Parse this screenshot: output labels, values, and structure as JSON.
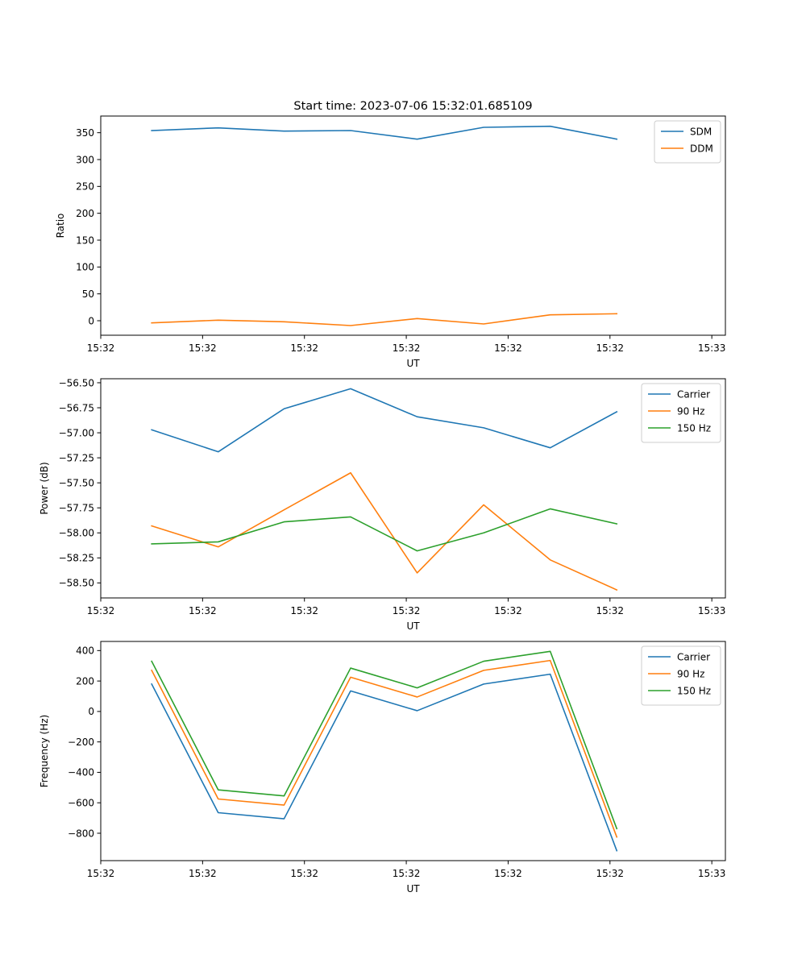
{
  "figure_title": "Start time: 2023-07-06 15:32:01.685109",
  "chart_data": [
    {
      "type": "line",
      "xlabel": "UT",
      "ylabel": "Ratio",
      "x_tick_labels": [
        "15:32",
        "15:32",
        "15:32",
        "15:32",
        "15:32",
        "15:32",
        "15:33"
      ],
      "xlim": [
        0,
        9.2
      ],
      "x_ticks": [
        0,
        1.5,
        3,
        4.5,
        6,
        7.5,
        9
      ],
      "x": [
        0.75,
        1.73,
        2.7,
        3.68,
        4.66,
        5.64,
        6.62,
        7.6
      ],
      "ylim": [
        -27,
        381
      ],
      "y_ticks": [
        0,
        50,
        100,
        150,
        200,
        250,
        300,
        350
      ],
      "legend_position": "top-right",
      "series": [
        {
          "name": "SDM",
          "color": "#1f77b4",
          "values": [
            354,
            359,
            353,
            354,
            338,
            360,
            362,
            338
          ]
        },
        {
          "name": "DDM",
          "color": "#ff7f0e",
          "values": [
            -4,
            1,
            -2,
            -9,
            4,
            -6,
            11,
            13
          ]
        }
      ]
    },
    {
      "type": "line",
      "xlabel": "UT",
      "ylabel": "Power (dB)",
      "x_tick_labels": [
        "15:32",
        "15:32",
        "15:32",
        "15:32",
        "15:32",
        "15:32",
        "15:33"
      ],
      "xlim": [
        0,
        9.2
      ],
      "x_ticks": [
        0,
        1.5,
        3,
        4.5,
        6,
        7.5,
        9
      ],
      "x": [
        0.75,
        1.73,
        2.7,
        3.68,
        4.66,
        5.64,
        6.62,
        7.6
      ],
      "ylim": [
        -58.65,
        -56.46
      ],
      "y_ticks": [
        -58.5,
        -58.25,
        -58.0,
        -57.75,
        -57.5,
        -57.25,
        -57.0,
        -56.75,
        -56.5
      ],
      "y_tick_labels": [
        "−58.50",
        "−58.25",
        "−58.00",
        "−57.75",
        "−57.50",
        "−57.25",
        "−57.00",
        "−56.75",
        "−56.50"
      ],
      "legend_position": "top-right",
      "series": [
        {
          "name": "Carrier",
          "color": "#1f77b4",
          "values": [
            -56.97,
            -57.19,
            -56.76,
            -56.56,
            -56.84,
            -56.95,
            -57.15,
            -56.79
          ]
        },
        {
          "name": "90 Hz",
          "color": "#ff7f0e",
          "values": [
            -57.93,
            -58.14,
            -57.77,
            -57.4,
            -58.4,
            -57.72,
            -58.27,
            -58.57
          ]
        },
        {
          "name": "150 Hz",
          "color": "#2ca02c",
          "values": [
            -58.11,
            -58.09,
            -57.89,
            -57.84,
            -58.18,
            -58.0,
            -57.76,
            -57.91
          ]
        }
      ]
    },
    {
      "type": "line",
      "xlabel": "UT",
      "ylabel": "Frequency (Hz)",
      "x_tick_labels": [
        "15:32",
        "15:32",
        "15:32",
        "15:32",
        "15:32",
        "15:32",
        "15:33"
      ],
      "xlim": [
        0,
        9.2
      ],
      "x_ticks": [
        0,
        1.5,
        3,
        4.5,
        6,
        7.5,
        9
      ],
      "x": [
        0.75,
        1.73,
        2.7,
        3.68,
        4.66,
        5.64,
        6.62,
        7.6
      ],
      "ylim": [
        -980,
        460
      ],
      "y_ticks": [
        -800,
        -600,
        -400,
        -200,
        0,
        200,
        400
      ],
      "y_tick_labels": [
        "−800",
        "−600",
        "−400",
        "−200",
        "0",
        "200",
        "400"
      ],
      "legend_position": "top-right",
      "series": [
        {
          "name": "Carrier",
          "color": "#1f77b4",
          "values": [
            180,
            -665,
            -705,
            135,
            5,
            180,
            245,
            -915
          ]
        },
        {
          "name": "90 Hz",
          "color": "#ff7f0e",
          "values": [
            270,
            -575,
            -615,
            225,
            95,
            270,
            335,
            -825
          ]
        },
        {
          "name": "150 Hz",
          "color": "#2ca02c",
          "values": [
            330,
            -515,
            -555,
            285,
            155,
            330,
            395,
            -770
          ]
        }
      ]
    }
  ]
}
